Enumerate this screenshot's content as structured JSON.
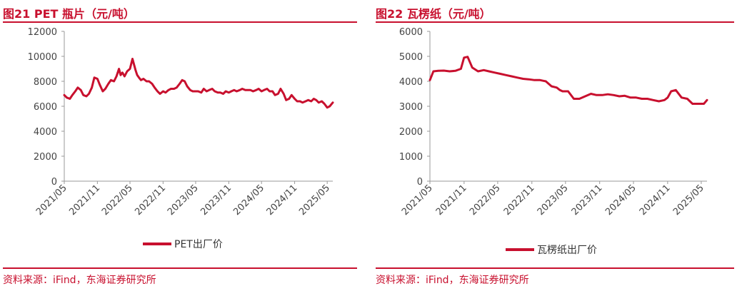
{
  "source_text": "资料来源：iFind，东海证券研究所",
  "chart_data": [
    {
      "type": "line",
      "title": "图21  PET 瓶片（元/吨）",
      "xlabel": "",
      "ylabel": "",
      "ylim": [
        0,
        12000
      ],
      "yticks": [
        0,
        2000,
        4000,
        6000,
        8000,
        10000,
        12000
      ],
      "xticks": [
        "2021/05",
        "2021/11",
        "2022/05",
        "2022/11",
        "2023/05",
        "2023/11",
        "2024/05",
        "2024/11",
        "2025/05"
      ],
      "xlim": [
        "2021-05-01",
        "2025-06-01"
      ],
      "grid": false,
      "legend_position": "bottom",
      "color": "#c8102e",
      "series": [
        {
          "name": "PET出厂价",
          "x": [
            "2021-05-01",
            "2021-05-15",
            "2021-06-01",
            "2021-06-15",
            "2021-07-01",
            "2021-07-15",
            "2021-08-01",
            "2021-08-15",
            "2021-09-01",
            "2021-09-15",
            "2021-10-01",
            "2021-10-15",
            "2021-11-01",
            "2021-11-15",
            "2021-12-01",
            "2021-12-15",
            "2022-01-01",
            "2022-01-15",
            "2022-02-01",
            "2022-02-15",
            "2022-03-01",
            "2022-03-10",
            "2022-03-20",
            "2022-04-01",
            "2022-04-15",
            "2022-05-01",
            "2022-05-15",
            "2022-06-01",
            "2022-06-10",
            "2022-06-20",
            "2022-07-01",
            "2022-07-15",
            "2022-08-01",
            "2022-08-15",
            "2022-09-01",
            "2022-09-15",
            "2022-10-01",
            "2022-10-15",
            "2022-11-01",
            "2022-11-15",
            "2022-12-01",
            "2022-12-15",
            "2023-01-01",
            "2023-01-15",
            "2023-02-01",
            "2023-02-15",
            "2023-03-01",
            "2023-03-15",
            "2023-04-01",
            "2023-04-15",
            "2023-05-01",
            "2023-05-15",
            "2023-06-01",
            "2023-06-15",
            "2023-07-01",
            "2023-07-15",
            "2023-08-01",
            "2023-08-15",
            "2023-09-01",
            "2023-09-15",
            "2023-10-01",
            "2023-10-15",
            "2023-11-01",
            "2023-11-15",
            "2023-12-01",
            "2023-12-15",
            "2024-01-01",
            "2024-01-15",
            "2024-02-01",
            "2024-02-15",
            "2024-03-01",
            "2024-03-15",
            "2024-04-01",
            "2024-04-15",
            "2024-05-01",
            "2024-05-15",
            "2024-06-01",
            "2024-06-15",
            "2024-07-01",
            "2024-07-15",
            "2024-08-01",
            "2024-08-15",
            "2024-09-01",
            "2024-09-15",
            "2024-10-01",
            "2024-10-15",
            "2024-11-01",
            "2024-11-15",
            "2024-12-01",
            "2024-12-15",
            "2025-01-01",
            "2025-01-15",
            "2025-02-01",
            "2025-02-15",
            "2025-03-01",
            "2025-03-15",
            "2025-04-01",
            "2025-04-15",
            "2025-05-01",
            "2025-05-15",
            "2025-06-01"
          ],
          "y": [
            6900,
            6700,
            6600,
            6900,
            7200,
            7500,
            7300,
            6900,
            6800,
            7000,
            7500,
            8300,
            8200,
            7700,
            7200,
            7400,
            7800,
            8100,
            8000,
            8400,
            9000,
            8500,
            8700,
            8400,
            8800,
            9000,
            9800,
            8900,
            8500,
            8300,
            8100,
            8200,
            8000,
            8000,
            7800,
            7500,
            7200,
            7000,
            7200,
            7100,
            7300,
            7400,
            7400,
            7500,
            7800,
            8100,
            8000,
            7600,
            7300,
            7200,
            7200,
            7200,
            7100,
            7400,
            7200,
            7300,
            7400,
            7200,
            7100,
            7100,
            7000,
            7200,
            7100,
            7200,
            7300,
            7200,
            7300,
            7400,
            7300,
            7300,
            7300,
            7200,
            7300,
            7400,
            7200,
            7300,
            7400,
            7200,
            7200,
            6900,
            7000,
            7400,
            7000,
            6500,
            6600,
            6900,
            6600,
            6400,
            6400,
            6300,
            6400,
            6500,
            6400,
            6600,
            6500,
            6300,
            6400,
            6200,
            5900,
            6000,
            6300
          ]
        }
      ]
    },
    {
      "type": "line",
      "title": "图22  瓦楞纸（元/吨）",
      "xlabel": "",
      "ylabel": "",
      "ylim": [
        0,
        6000
      ],
      "yticks": [
        0,
        1000,
        2000,
        3000,
        4000,
        5000,
        6000
      ],
      "xticks": [
        "2021/05",
        "2021/11",
        "2022/05",
        "2022/11",
        "2023/05",
        "2023/11",
        "2024/05",
        "2024/11",
        "2025/05"
      ],
      "xlim": [
        "2021-05-01",
        "2025-06-01"
      ],
      "grid": false,
      "legend_position": "bottom",
      "color": "#c8102e",
      "series": [
        {
          "name": "瓦楞纸出厂价",
          "x": [
            "2021-05-01",
            "2021-05-20",
            "2021-06-15",
            "2021-07-15",
            "2021-08-15",
            "2021-09-15",
            "2021-10-15",
            "2021-11-01",
            "2021-11-20",
            "2021-12-15",
            "2022-01-15",
            "2022-02-15",
            "2022-03-15",
            "2022-04-15",
            "2022-05-15",
            "2022-06-15",
            "2022-07-15",
            "2022-08-15",
            "2022-09-15",
            "2022-10-15",
            "2022-11-15",
            "2022-12-15",
            "2023-01-15",
            "2023-02-15",
            "2023-03-15",
            "2023-04-01",
            "2023-04-15",
            "2023-05-15",
            "2023-06-15",
            "2023-07-15",
            "2023-08-15",
            "2023-09-15",
            "2023-10-15",
            "2023-11-15",
            "2023-12-15",
            "2024-01-15",
            "2024-02-15",
            "2024-03-15",
            "2024-04-15",
            "2024-05-15",
            "2024-06-15",
            "2024-07-15",
            "2024-08-15",
            "2024-09-15",
            "2024-10-15",
            "2024-11-01",
            "2024-11-20",
            "2024-12-15",
            "2025-01-15",
            "2025-02-15",
            "2025-03-15",
            "2025-04-15",
            "2025-05-15",
            "2025-06-01"
          ],
          "y": [
            4050,
            4400,
            4420,
            4430,
            4400,
            4420,
            4500,
            4950,
            4980,
            4550,
            4400,
            4450,
            4400,
            4350,
            4300,
            4250,
            4200,
            4150,
            4100,
            4080,
            4050,
            4050,
            4000,
            3800,
            3750,
            3650,
            3600,
            3600,
            3300,
            3300,
            3400,
            3500,
            3450,
            3450,
            3480,
            3450,
            3400,
            3420,
            3350,
            3350,
            3300,
            3300,
            3250,
            3200,
            3250,
            3350,
            3600,
            3650,
            3350,
            3300,
            3100,
            3100,
            3100,
            3250
          ]
        }
      ]
    }
  ]
}
